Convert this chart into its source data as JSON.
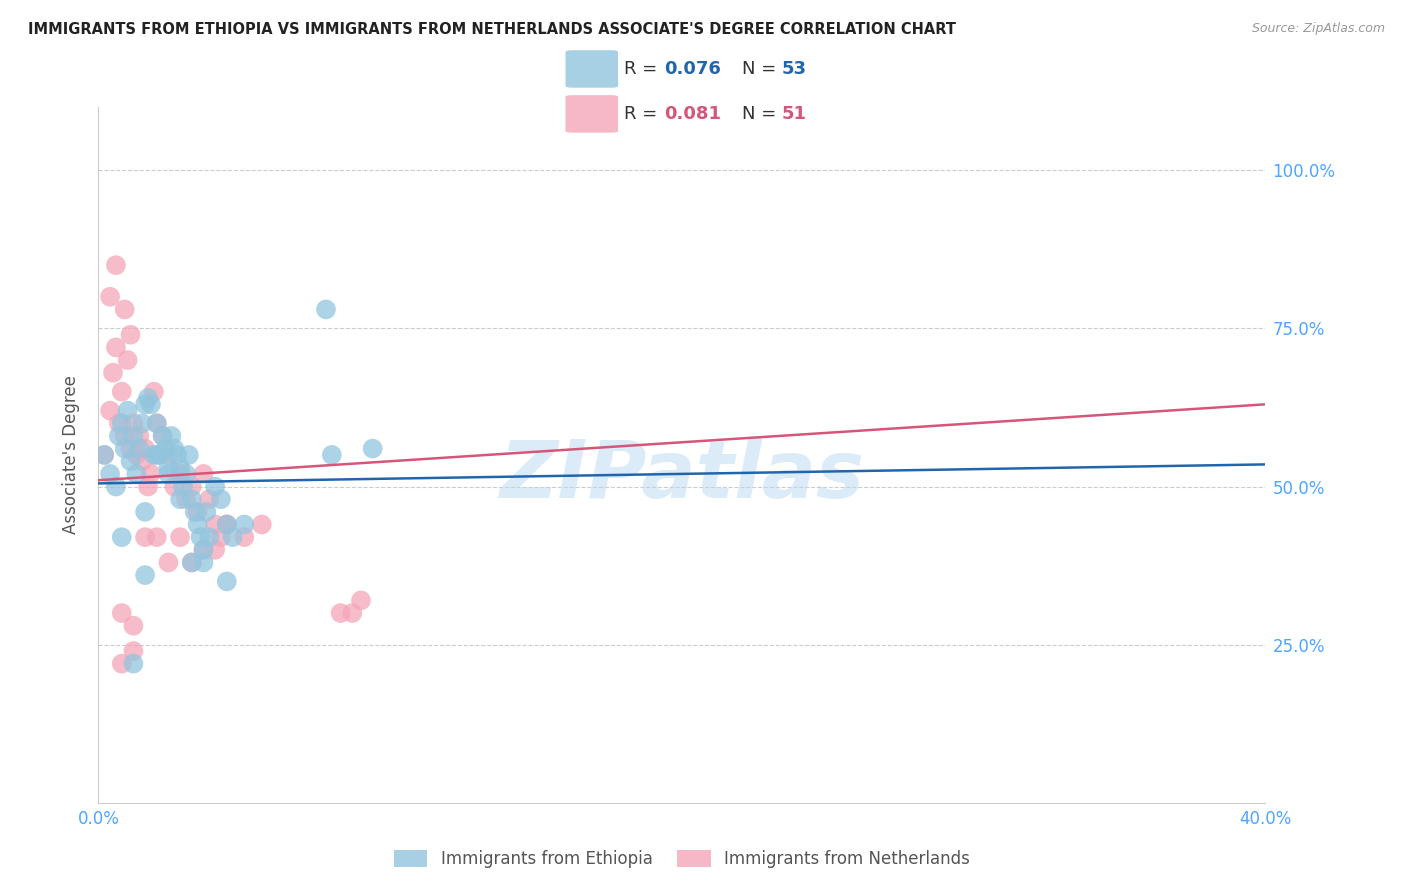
{
  "title": "IMMIGRANTS FROM ETHIOPIA VS IMMIGRANTS FROM NETHERLANDS ASSOCIATE'S DEGREE CORRELATION CHART",
  "source": "Source: ZipAtlas.com",
  "ylabel": "Associate's Degree",
  "ytick_labels": [
    "100.0%",
    "75.0%",
    "50.0%",
    "25.0%"
  ],
  "ytick_values": [
    1.0,
    0.75,
    0.5,
    0.25
  ],
  "xlim": [
    0.0,
    0.4
  ],
  "ylim": [
    0.0,
    1.1
  ],
  "xtick_positions": [
    0.0,
    0.1,
    0.2,
    0.3,
    0.4
  ],
  "xtick_labels": [
    "0.0%",
    "",
    "",
    "",
    "40.0%"
  ],
  "legend_r1_label": "R = ",
  "legend_r1_val": "0.076",
  "legend_n1_label": "N = ",
  "legend_n1_val": "53",
  "legend_r2_label": "R = ",
  "legend_r2_val": "0.081",
  "legend_n2_label": "N = ",
  "legend_n2_val": "51",
  "blue_color": "#92c5de",
  "pink_color": "#f4a6b8",
  "line_blue": "#2166ac",
  "line_pink": "#d6567a",
  "axis_color": "#4da6ff",
  "grid_color": "#cccccc",
  "watermark": "ZIPatlas",
  "watermark_color": "#b8d8f0",
  "ethiopia_x": [
    0.002,
    0.004,
    0.006,
    0.007,
    0.008,
    0.009,
    0.01,
    0.011,
    0.012,
    0.013,
    0.014,
    0.015,
    0.016,
    0.017,
    0.018,
    0.019,
    0.02,
    0.021,
    0.022,
    0.023,
    0.024,
    0.025,
    0.026,
    0.027,
    0.028,
    0.029,
    0.03,
    0.031,
    0.032,
    0.033,
    0.034,
    0.035,
    0.036,
    0.037,
    0.038,
    0.04,
    0.042,
    0.044,
    0.046,
    0.05,
    0.012,
    0.016,
    0.02,
    0.024,
    0.028,
    0.032,
    0.036,
    0.044,
    0.008,
    0.016,
    0.08,
    0.094,
    0.078
  ],
  "ethiopia_y": [
    0.55,
    0.52,
    0.5,
    0.58,
    0.6,
    0.56,
    0.62,
    0.54,
    0.58,
    0.52,
    0.56,
    0.6,
    0.63,
    0.64,
    0.63,
    0.55,
    0.6,
    0.55,
    0.58,
    0.56,
    0.53,
    0.58,
    0.56,
    0.55,
    0.53,
    0.5,
    0.52,
    0.55,
    0.48,
    0.46,
    0.44,
    0.42,
    0.4,
    0.46,
    0.42,
    0.5,
    0.48,
    0.44,
    0.42,
    0.44,
    0.22,
    0.46,
    0.55,
    0.52,
    0.48,
    0.38,
    0.38,
    0.35,
    0.42,
    0.36,
    0.55,
    0.56,
    0.78
  ],
  "netherlands_x": [
    0.002,
    0.004,
    0.005,
    0.006,
    0.007,
    0.008,
    0.009,
    0.01,
    0.011,
    0.012,
    0.013,
    0.014,
    0.015,
    0.016,
    0.017,
    0.018,
    0.019,
    0.02,
    0.022,
    0.024,
    0.026,
    0.028,
    0.03,
    0.032,
    0.034,
    0.036,
    0.038,
    0.04,
    0.042,
    0.044,
    0.008,
    0.012,
    0.016,
    0.02,
    0.024,
    0.028,
    0.032,
    0.036,
    0.04,
    0.044,
    0.05,
    0.056,
    0.008,
    0.012,
    0.083,
    0.087,
    0.09,
    0.004,
    0.006,
    0.009,
    0.011
  ],
  "netherlands_y": [
    0.55,
    0.62,
    0.68,
    0.72,
    0.6,
    0.65,
    0.58,
    0.7,
    0.56,
    0.6,
    0.55,
    0.58,
    0.54,
    0.56,
    0.5,
    0.52,
    0.65,
    0.6,
    0.58,
    0.55,
    0.5,
    0.52,
    0.48,
    0.5,
    0.46,
    0.52,
    0.48,
    0.44,
    0.42,
    0.44,
    0.22,
    0.24,
    0.42,
    0.42,
    0.38,
    0.42,
    0.38,
    0.4,
    0.4,
    0.44,
    0.42,
    0.44,
    0.3,
    0.28,
    0.3,
    0.3,
    0.32,
    0.8,
    0.85,
    0.78,
    0.74
  ],
  "eth_line_x": [
    0.0,
    0.4
  ],
  "eth_line_y": [
    0.505,
    0.535
  ],
  "neth_line_x": [
    0.0,
    0.4
  ],
  "neth_line_y": [
    0.51,
    0.63
  ],
  "bottom_legend_labels": [
    "Immigrants from Ethiopia",
    "Immigrants from Netherlands"
  ]
}
